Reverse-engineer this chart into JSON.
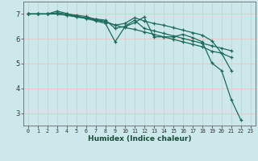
{
  "xlabel": "Humidex (Indice chaleur)",
  "bg_color": "#cce8ea",
  "grid_color": "#e8c8c8",
  "line_color": "#1a6b5a",
  "series": [
    {
      "x": [
        0,
        1,
        2,
        3,
        4,
        5,
        6,
        7,
        8,
        9,
        10,
        11,
        12,
        13,
        14,
        15,
        16,
        17,
        18,
        19,
        20,
        21,
        22,
        23
      ],
      "y": [
        7.0,
        7.0,
        7.0,
        7.0,
        6.95,
        6.88,
        6.82,
        6.75,
        6.68,
        6.55,
        6.45,
        6.38,
        6.28,
        6.18,
        6.08,
        5.98,
        5.88,
        5.78,
        5.68,
        5.5,
        5.42,
        5.25,
        null,
        null
      ]
    },
    {
      "x": [
        0,
        1,
        2,
        3,
        4,
        5,
        6,
        7,
        8,
        9,
        10,
        11,
        12,
        13,
        14,
        15,
        16,
        17,
        18,
        19,
        20,
        21,
        22,
        23
      ],
      "y": [
        7.0,
        7.0,
        7.0,
        7.05,
        7.0,
        6.95,
        6.9,
        6.78,
        6.7,
        6.55,
        6.62,
        6.85,
        6.72,
        6.62,
        6.55,
        6.45,
        6.35,
        6.25,
        6.15,
        5.92,
        5.42,
        4.72,
        null,
        null
      ]
    },
    {
      "x": [
        0,
        1,
        2,
        3,
        4,
        5,
        6,
        7,
        8,
        9,
        10,
        11,
        12,
        13,
        14,
        15,
        16,
        17,
        18,
        19,
        20,
        21,
        22,
        23
      ],
      "y": [
        7.0,
        7.0,
        7.0,
        7.12,
        7.02,
        6.92,
        6.82,
        6.72,
        6.62,
        5.88,
        6.48,
        6.65,
        6.88,
        6.08,
        6.08,
        6.08,
        6.18,
        6.05,
        5.88,
        5.02,
        4.72,
        3.55,
        2.72,
        null
      ]
    },
    {
      "x": [
        0,
        1,
        2,
        3,
        4,
        5,
        6,
        7,
        8,
        9,
        10,
        11,
        12,
        13,
        14,
        15,
        16,
        17,
        18,
        19,
        20,
        21,
        22,
        23
      ],
      "y": [
        7.0,
        7.0,
        7.0,
        7.0,
        6.95,
        6.9,
        6.85,
        6.8,
        6.75,
        6.42,
        6.5,
        6.75,
        6.42,
        6.32,
        6.22,
        6.12,
        6.02,
        5.92,
        5.82,
        5.72,
        5.62,
        5.52,
        null,
        null
      ]
    }
  ],
  "xlim": [
    -0.5,
    23.5
  ],
  "ylim": [
    2.5,
    7.5
  ],
  "yticks": [
    3,
    4,
    5,
    6,
    7
  ],
  "xticks": [
    0,
    1,
    2,
    3,
    4,
    5,
    6,
    7,
    8,
    9,
    10,
    11,
    12,
    13,
    14,
    15,
    16,
    17,
    18,
    19,
    20,
    21,
    22,
    23
  ]
}
